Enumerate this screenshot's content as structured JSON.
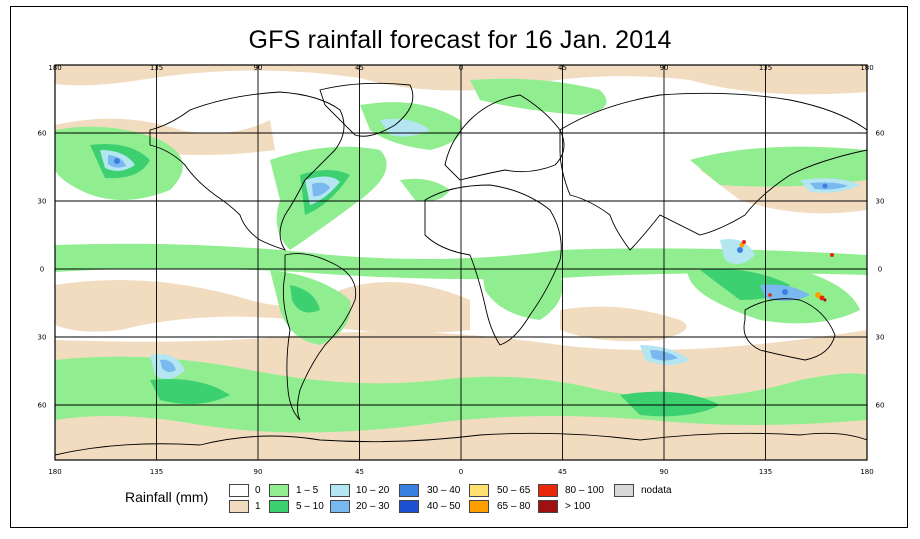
{
  "title": "GFS rainfall forecast for 16 Jan. 2014",
  "longitude_ticks": [
    "180",
    "135",
    "90",
    "45",
    "0",
    "45",
    "90",
    "135",
    "180"
  ],
  "latitude_ticks_left": [
    "60",
    "30",
    "0",
    "30",
    "60"
  ],
  "latitude_ticks_right": [
    "60",
    "30",
    "0",
    "30",
    "60"
  ],
  "legend": {
    "label": "Rainfall (mm)",
    "items": [
      {
        "text": "0",
        "color": "#ffffff"
      },
      {
        "text": "1",
        "color": "#f2dcc0"
      },
      {
        "text": "1 – 5",
        "color": "#90ee90"
      },
      {
        "text": "5 – 10",
        "color": "#3cd070"
      },
      {
        "text": "10 – 20",
        "color": "#b4e6f2"
      },
      {
        "text": "20 – 30",
        "color": "#7ab8f0"
      },
      {
        "text": "30 – 40",
        "color": "#3a80e0"
      },
      {
        "text": "40 – 50",
        "color": "#1c50d0"
      },
      {
        "text": "50 – 65",
        "color": "#ffe070"
      },
      {
        "text": "65 – 80",
        "color": "#ffa000"
      },
      {
        "text": "80 – 100",
        "color": "#e82808"
      },
      {
        "text": "> 100",
        "color": "#a01010"
      },
      {
        "text": "nodata",
        "color": "#d8d8d8"
      }
    ]
  }
}
